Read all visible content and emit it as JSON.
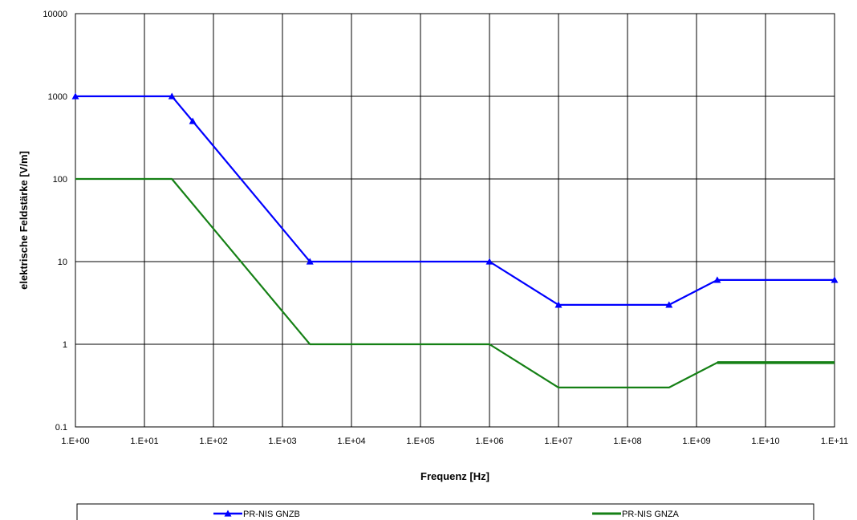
{
  "chart_data": {
    "type": "line",
    "title": "",
    "xlabel": "Frequenz [Hz]",
    "ylabel": "elektrische Feldstärke [V/m]",
    "x_scale": "log",
    "y_scale": "log",
    "xlim": [
      1,
      100000000000
    ],
    "ylim": [
      0.1,
      10000
    ],
    "grid": true,
    "legend_position": "bottom",
    "x_tick_labels": [
      "1.E+00",
      "1.E+01",
      "1.E+02",
      "1.E+03",
      "1.E+04",
      "1.E+05",
      "1.E+06",
      "1.E+07",
      "1.E+08",
      "1.E+09",
      "1.E+10",
      "1.E+11"
    ],
    "y_tick_labels": [
      "10000",
      "1000",
      "100",
      "10",
      "1",
      "0.1"
    ],
    "series": [
      {
        "name": "PR-NIS GNZB",
        "color": "#0000ff",
        "marker": "triangle",
        "x": [
          1,
          25,
          50,
          2500,
          1000000,
          10000000,
          400000000,
          2000000000,
          100000000000
        ],
        "y": [
          1000,
          1000,
          500,
          10,
          10,
          3,
          3,
          6,
          6
        ]
      },
      {
        "name": "PR-NIS GNZA",
        "color": "#158015",
        "marker": "none",
        "x": [
          1,
          25,
          2500,
          1000000,
          10000000,
          400000000,
          2000000000,
          100000000000
        ],
        "y": [
          100,
          100,
          1,
          1,
          0.3,
          0.3,
          0.6,
          0.6
        ]
      }
    ]
  }
}
